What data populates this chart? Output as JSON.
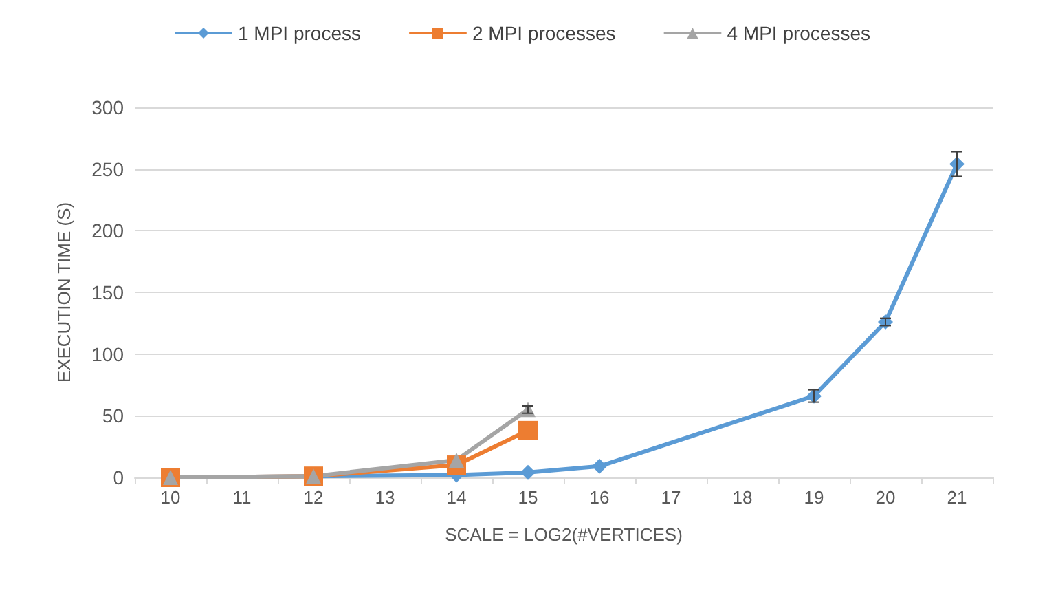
{
  "chart_data": {
    "type": "line",
    "xlabel": "SCALE = LOG2(#VERTICES)",
    "ylabel": "EXECUTION TIME (S)",
    "categories": [
      "10",
      "11",
      "12",
      "13",
      "14",
      "15",
      "16",
      "17",
      "18",
      "19",
      "20",
      "21"
    ],
    "series": [
      {
        "name": "1 MPI process",
        "color": "#5b9bd5",
        "marker": "diamond",
        "values": [
          0,
          null,
          1,
          null,
          2,
          4,
          9,
          null,
          null,
          66,
          126,
          254
        ],
        "errors": [
          null,
          null,
          null,
          null,
          null,
          null,
          null,
          null,
          null,
          5,
          3,
          10
        ]
      },
      {
        "name": "2 MPI processes",
        "color": "#ed7d31",
        "marker": "square",
        "values": [
          0,
          null,
          1,
          null,
          10,
          38,
          null,
          null,
          null,
          null,
          null,
          null
        ]
      },
      {
        "name": "4 MPI processes",
        "color": "#a5a5a5",
        "marker": "triangle",
        "values": [
          0,
          null,
          1,
          null,
          14,
          55,
          null,
          null,
          null,
          null,
          null,
          null
        ],
        "errors": [
          null,
          null,
          null,
          null,
          null,
          3,
          null,
          null,
          null,
          null,
          null,
          null
        ]
      }
    ],
    "ylim": [
      0,
      300
    ],
    "yticks": [
      0,
      50,
      100,
      150,
      200,
      250,
      300
    ],
    "grid": "y",
    "legend": "top",
    "line_style": "solid"
  }
}
